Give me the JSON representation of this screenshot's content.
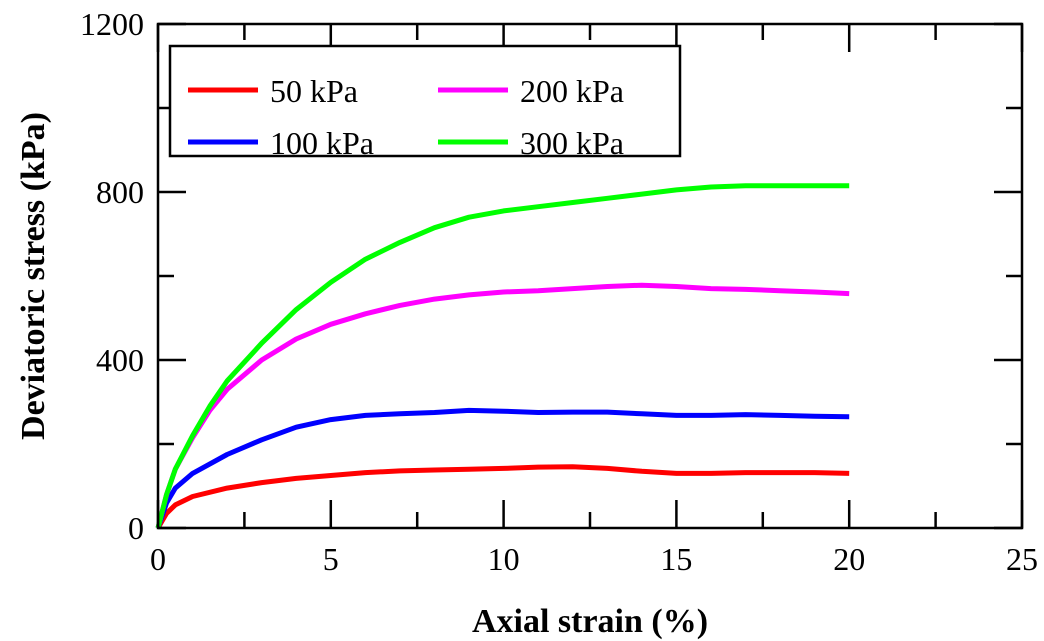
{
  "chart_data": {
    "type": "line",
    "xlabel": "Axial strain (%)",
    "ylabel": "Deviatoric stress (kPa)",
    "xlim": [
      0,
      25
    ],
    "ylim": [
      0,
      1200
    ],
    "xticks": [
      0,
      5,
      10,
      15,
      20,
      25
    ],
    "yticks": [
      0,
      400,
      800,
      1200
    ],
    "grid": false,
    "legend_position": "top-left",
    "series": [
      {
        "name": "50 kPa",
        "color": "#ff0000",
        "x": [
          0,
          0.25,
          0.5,
          1,
          2,
          3,
          4,
          5,
          6,
          7,
          8,
          9,
          10,
          11,
          12,
          13,
          14,
          15,
          16,
          17,
          18,
          19,
          20
        ],
        "y": [
          0,
          35,
          55,
          75,
          95,
          108,
          118,
          125,
          132,
          136,
          138,
          140,
          142,
          145,
          146,
          142,
          135,
          130,
          130,
          132,
          132,
          132,
          130
        ]
      },
      {
        "name": "100 kPa",
        "color": "#0000ff",
        "x": [
          0,
          0.25,
          0.5,
          1,
          2,
          3,
          4,
          5,
          6,
          7,
          8,
          9,
          10,
          11,
          12,
          13,
          14,
          15,
          16,
          17,
          18,
          19,
          20
        ],
        "y": [
          0,
          60,
          95,
          130,
          175,
          210,
          240,
          258,
          268,
          272,
          275,
          280,
          278,
          275,
          276,
          276,
          272,
          268,
          268,
          270,
          268,
          266,
          265
        ]
      },
      {
        "name": "200 kPa",
        "color": "#ff00ff",
        "x": [
          0,
          0.25,
          0.5,
          1,
          1.5,
          2,
          3,
          4,
          5,
          6,
          7,
          8,
          9,
          10,
          11,
          12,
          13,
          14,
          15,
          16,
          17,
          18,
          19,
          20
        ],
        "y": [
          0,
          80,
          140,
          215,
          280,
          330,
          400,
          450,
          485,
          510,
          530,
          545,
          555,
          562,
          565,
          570,
          575,
          578,
          575,
          570,
          568,
          565,
          562,
          558
        ]
      },
      {
        "name": "300 kPa",
        "color": "#00ff00",
        "x": [
          0,
          0.25,
          0.5,
          1,
          1.5,
          2,
          3,
          4,
          5,
          6,
          7,
          8,
          9,
          10,
          11,
          12,
          13,
          14,
          15,
          16,
          17,
          18,
          19,
          20
        ],
        "y": [
          0,
          80,
          140,
          220,
          290,
          350,
          440,
          520,
          585,
          640,
          680,
          715,
          740,
          755,
          765,
          775,
          785,
          795,
          805,
          812,
          815,
          815,
          815,
          815
        ]
      }
    ]
  }
}
